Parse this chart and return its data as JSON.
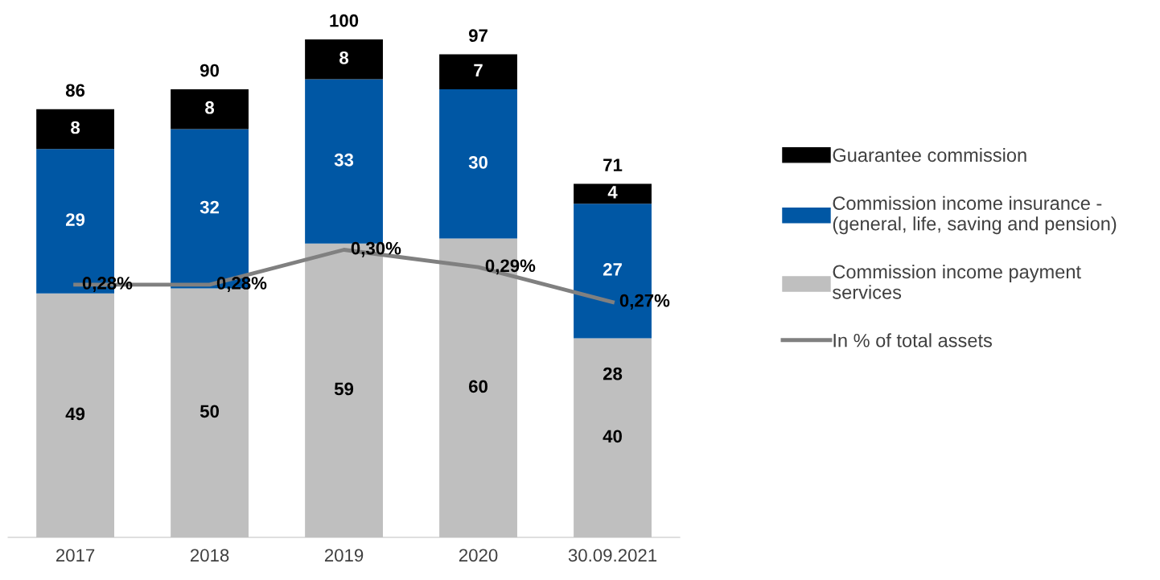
{
  "chart_data": {
    "type": "bar",
    "stacked": true,
    "categories": [
      "2017",
      "2018",
      "2019",
      "2020",
      "30.09.2021"
    ],
    "tick_labels": "x",
    "grid": false,
    "legend": "right",
    "data_labels": true,
    "totals": [
      "86",
      "90",
      "100",
      "97",
      "71"
    ],
    "series": [
      {
        "name": "Commission income payment\nservices",
        "color": "#bfbfbf",
        "values": [
          49,
          50,
          59,
          60,
          40
        ]
      },
      {
        "name": "Commission income insurance -\n(general, life, saving and pension)",
        "color": "#0057a4",
        "values": [
          29,
          32,
          33,
          30,
          27
        ]
      },
      {
        "name": "Guarantee commission",
        "color": "#000000",
        "values": [
          8,
          8,
          8,
          7,
          4
        ]
      },
      {
        "name": "In % of total assets",
        "type": "line",
        "axis": "y2",
        "color": "#808080",
        "values": [
          0.28,
          0.28,
          0.3,
          0.29,
          0.27
        ],
        "value_labels": [
          "0,28%",
          "0,28%",
          "0,30%",
          "0,29%",
          "0,27%"
        ]
      }
    ],
    "annotations": [
      "28"
    ]
  }
}
